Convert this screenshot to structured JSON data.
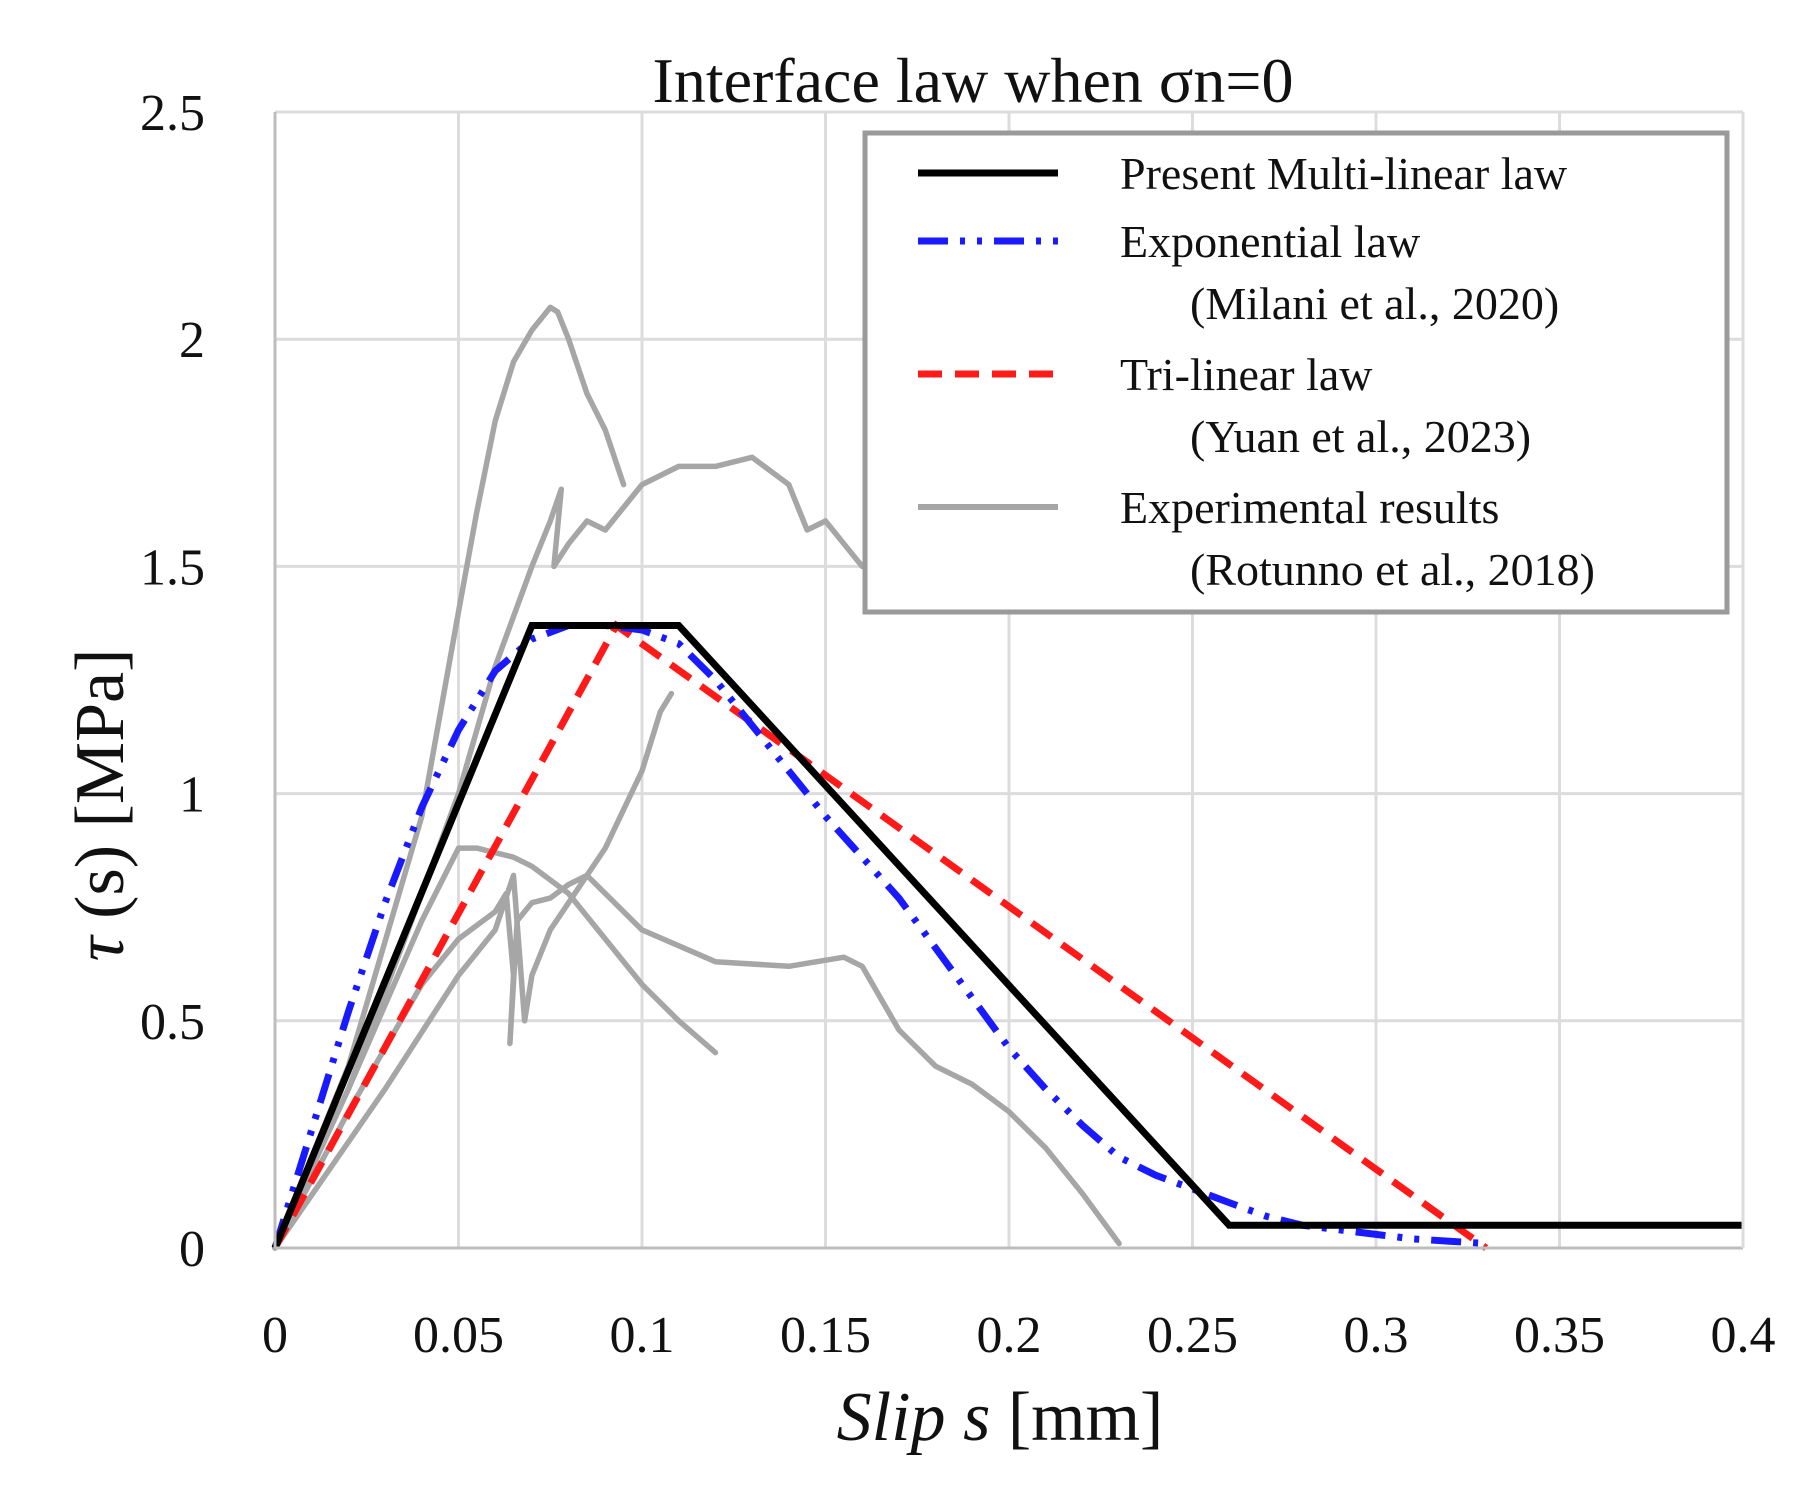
{
  "chart_data": {
    "type": "line",
    "title": "Interface  law when σn=0",
    "xlabel": {
      "italic": "Slip",
      "symbol": "s",
      "unit": "[mm]"
    },
    "ylabel": {
      "symbol": "τ",
      "arg": "(s)",
      "unit": "[MPa]"
    },
    "xlim": [
      0,
      0.4
    ],
    "ylim": [
      0,
      2.5
    ],
    "x_ticks": [
      0,
      0.05,
      0.1,
      0.15,
      0.2,
      0.25,
      0.3,
      0.35,
      0.4
    ],
    "x_tick_labels": [
      "0",
      "0.05",
      "0.1",
      "0.15",
      "0.2",
      "0.25",
      "0.3",
      "0.35",
      "0.4"
    ],
    "y_ticks": [
      0,
      0.5,
      1,
      1.5,
      2,
      2.5
    ],
    "y_tick_labels": [
      "0",
      "0.5",
      "1",
      "1.5",
      "2",
      "2.5"
    ],
    "grid": true,
    "legend_position": "top-right",
    "series": [
      {
        "name": "Present Multi-linear law",
        "color": "#000000",
        "style": "solid",
        "legend_lines": [
          "Present Multi-linear law"
        ],
        "x": [
          0,
          0.07,
          0.11,
          0.26,
          0.4
        ],
        "y": [
          0,
          1.37,
          1.37,
          0.05,
          0.05
        ]
      },
      {
        "name": "Exponential law (Milani et al., 2020)",
        "color": "#1a1aff",
        "style": "dashdotdot",
        "legend_lines": [
          "Exponential law",
          "(Milani et al., 2020)"
        ],
        "x": [
          0,
          0.01,
          0.02,
          0.03,
          0.04,
          0.05,
          0.06,
          0.07,
          0.08,
          0.09,
          0.1,
          0.11,
          0.12,
          0.13,
          0.14,
          0.15,
          0.16,
          0.17,
          0.18,
          0.19,
          0.2,
          0.21,
          0.22,
          0.23,
          0.24,
          0.25,
          0.26,
          0.27,
          0.28,
          0.29,
          0.3,
          0.31,
          0.32,
          0.33
        ],
        "y": [
          0,
          0.26,
          0.52,
          0.76,
          0.97,
          1.14,
          1.27,
          1.34,
          1.37,
          1.37,
          1.36,
          1.33,
          1.25,
          1.15,
          1.05,
          0.95,
          0.86,
          0.77,
          0.66,
          0.55,
          0.44,
          0.35,
          0.27,
          0.2,
          0.16,
          0.13,
          0.1,
          0.07,
          0.05,
          0.04,
          0.03,
          0.02,
          0.015,
          0.01
        ]
      },
      {
        "name": "Tri-linear law (Yuan et al., 2023)",
        "color": "#ff1a1a",
        "style": "dashed",
        "legend_lines": [
          "Tri-linear law",
          "(Yuan et al., 2023)"
        ],
        "x": [
          0,
          0.093,
          0.33
        ],
        "y": [
          0,
          1.37,
          0
        ]
      },
      {
        "name": "Experimental results (Rotunno et al., 2018)",
        "color": "#a6a6a6",
        "style": "solid",
        "legend_lines": [
          "Experimental results",
          "(Rotunno et al., 2018)"
        ],
        "curves": [
          {
            "x": [
              0,
              0.02,
              0.04,
              0.05,
              0.055,
              0.06,
              0.065,
              0.07,
              0.075,
              0.077,
              0.08,
              0.085,
              0.09,
              0.095
            ],
            "y": [
              0,
              0.4,
              0.95,
              1.4,
              1.62,
              1.82,
              1.95,
              2.02,
              2.07,
              2.06,
              2.0,
              1.88,
              1.8,
              1.68
            ]
          },
          {
            "x": [
              0,
              0.02,
              0.04,
              0.05,
              0.06,
              0.07,
              0.075,
              0.078,
              0.076,
              0.08,
              0.085,
              0.09,
              0.1,
              0.11,
              0.12,
              0.13,
              0.14,
              0.145,
              0.15,
              0.155,
              0.16
            ],
            "y": [
              0,
              0.35,
              0.78,
              1.0,
              1.28,
              1.5,
              1.6,
              1.67,
              1.5,
              1.55,
              1.6,
              1.58,
              1.68,
              1.72,
              1.72,
              1.74,
              1.68,
              1.58,
              1.6,
              1.55,
              1.5
            ]
          },
          {
            "x": [
              0,
              0.02,
              0.04,
              0.05,
              0.055,
              0.06,
              0.065,
              0.07,
              0.08,
              0.09,
              0.1,
              0.11,
              0.12
            ],
            "y": [
              0,
              0.35,
              0.72,
              0.88,
              0.88,
              0.87,
              0.86,
              0.84,
              0.78,
              0.68,
              0.58,
              0.5,
              0.43
            ]
          },
          {
            "x": [
              0,
              0.02,
              0.04,
              0.05,
              0.06,
              0.063,
              0.065,
              0.064,
              0.066,
              0.07,
              0.075,
              0.08,
              0.085,
              0.09,
              0.1,
              0.12,
              0.14,
              0.155,
              0.16,
              0.17,
              0.18,
              0.19,
              0.2,
              0.21,
              0.22,
              0.23
            ],
            "y": [
              0,
              0.3,
              0.58,
              0.68,
              0.74,
              0.78,
              0.6,
              0.45,
              0.72,
              0.76,
              0.77,
              0.8,
              0.82,
              0.78,
              0.7,
              0.63,
              0.62,
              0.64,
              0.62,
              0.48,
              0.4,
              0.36,
              0.3,
              0.22,
              0.12,
              0.01
            ]
          },
          {
            "x": [
              0,
              0.03,
              0.05,
              0.06,
              0.065,
              0.068,
              0.07,
              0.075,
              0.08,
              0.09,
              0.1,
              0.105,
              0.108
            ],
            "y": [
              0,
              0.35,
              0.6,
              0.7,
              0.82,
              0.5,
              0.6,
              0.7,
              0.76,
              0.88,
              1.05,
              1.18,
              1.22
            ]
          }
        ]
      }
    ]
  }
}
